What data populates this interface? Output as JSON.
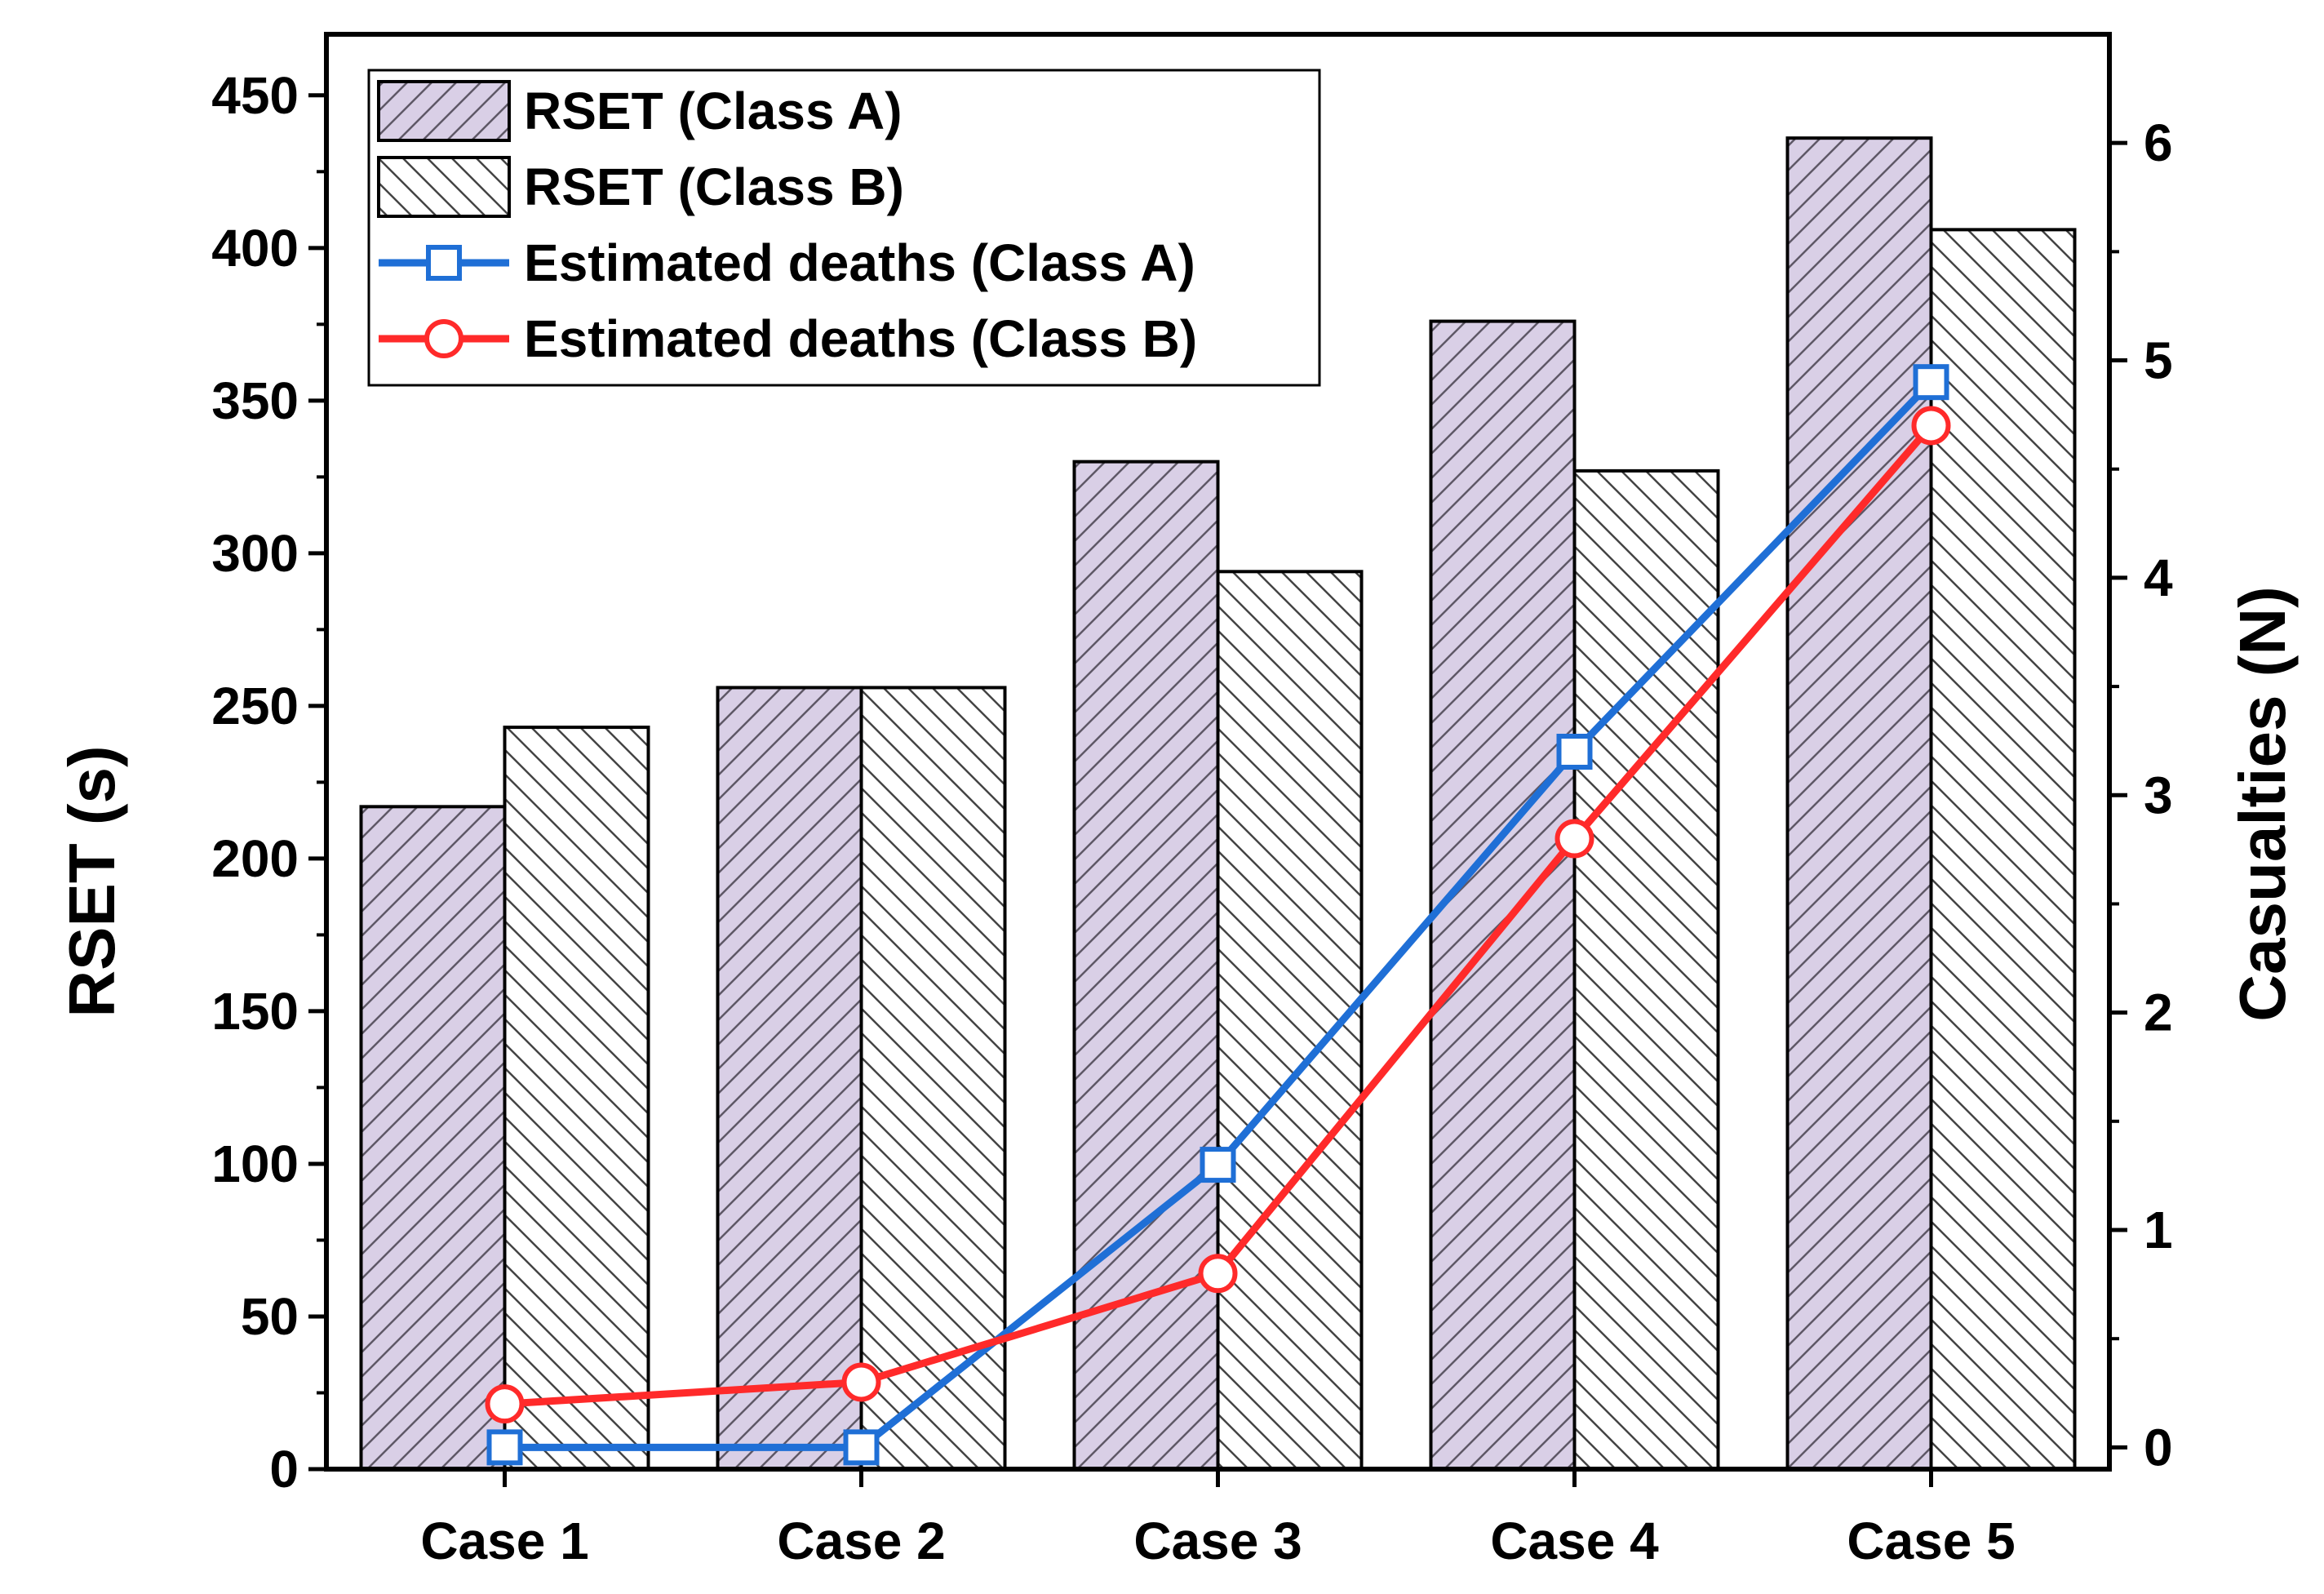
{
  "chart_data": {
    "type": "bar",
    "categories": [
      "Case 1",
      "Case 2",
      "Case 3",
      "Case 4",
      "Case 5"
    ],
    "series": [
      {
        "name": "RSET (Class A)",
        "kind": "bar",
        "axis": "left",
        "color": "#d9cfe6",
        "values": [
          217,
          256,
          330,
          376,
          436
        ]
      },
      {
        "name": "RSET (Class B)",
        "kind": "bar",
        "axis": "left",
        "color": "#ffffff",
        "values": [
          243,
          256,
          294,
          327,
          406
        ]
      },
      {
        "name": "Estimated deaths (Class A)",
        "kind": "line",
        "axis": "right",
        "color": "#1f6fd6",
        "marker": "square",
        "values": [
          0,
          0,
          1.3,
          3.2,
          4.9
        ]
      },
      {
        "name": "Estimated deaths (Class B)",
        "kind": "line",
        "axis": "right",
        "color": "#ff2a2a",
        "marker": "circle",
        "values": [
          0.2,
          0.3,
          0.8,
          2.8,
          4.7
        ]
      }
    ],
    "ylabel": "RSET (s)",
    "y2label": "Casualties (N)",
    "ylim": [
      0,
      470
    ],
    "y2lim": [
      -0.1,
      6.5
    ],
    "yticks": [
      0,
      50,
      100,
      150,
      200,
      250,
      300,
      350,
      400,
      450
    ],
    "y2ticks": [
      0,
      1,
      2,
      3,
      4,
      5,
      6
    ],
    "legend": "top-left",
    "grid": false
  }
}
